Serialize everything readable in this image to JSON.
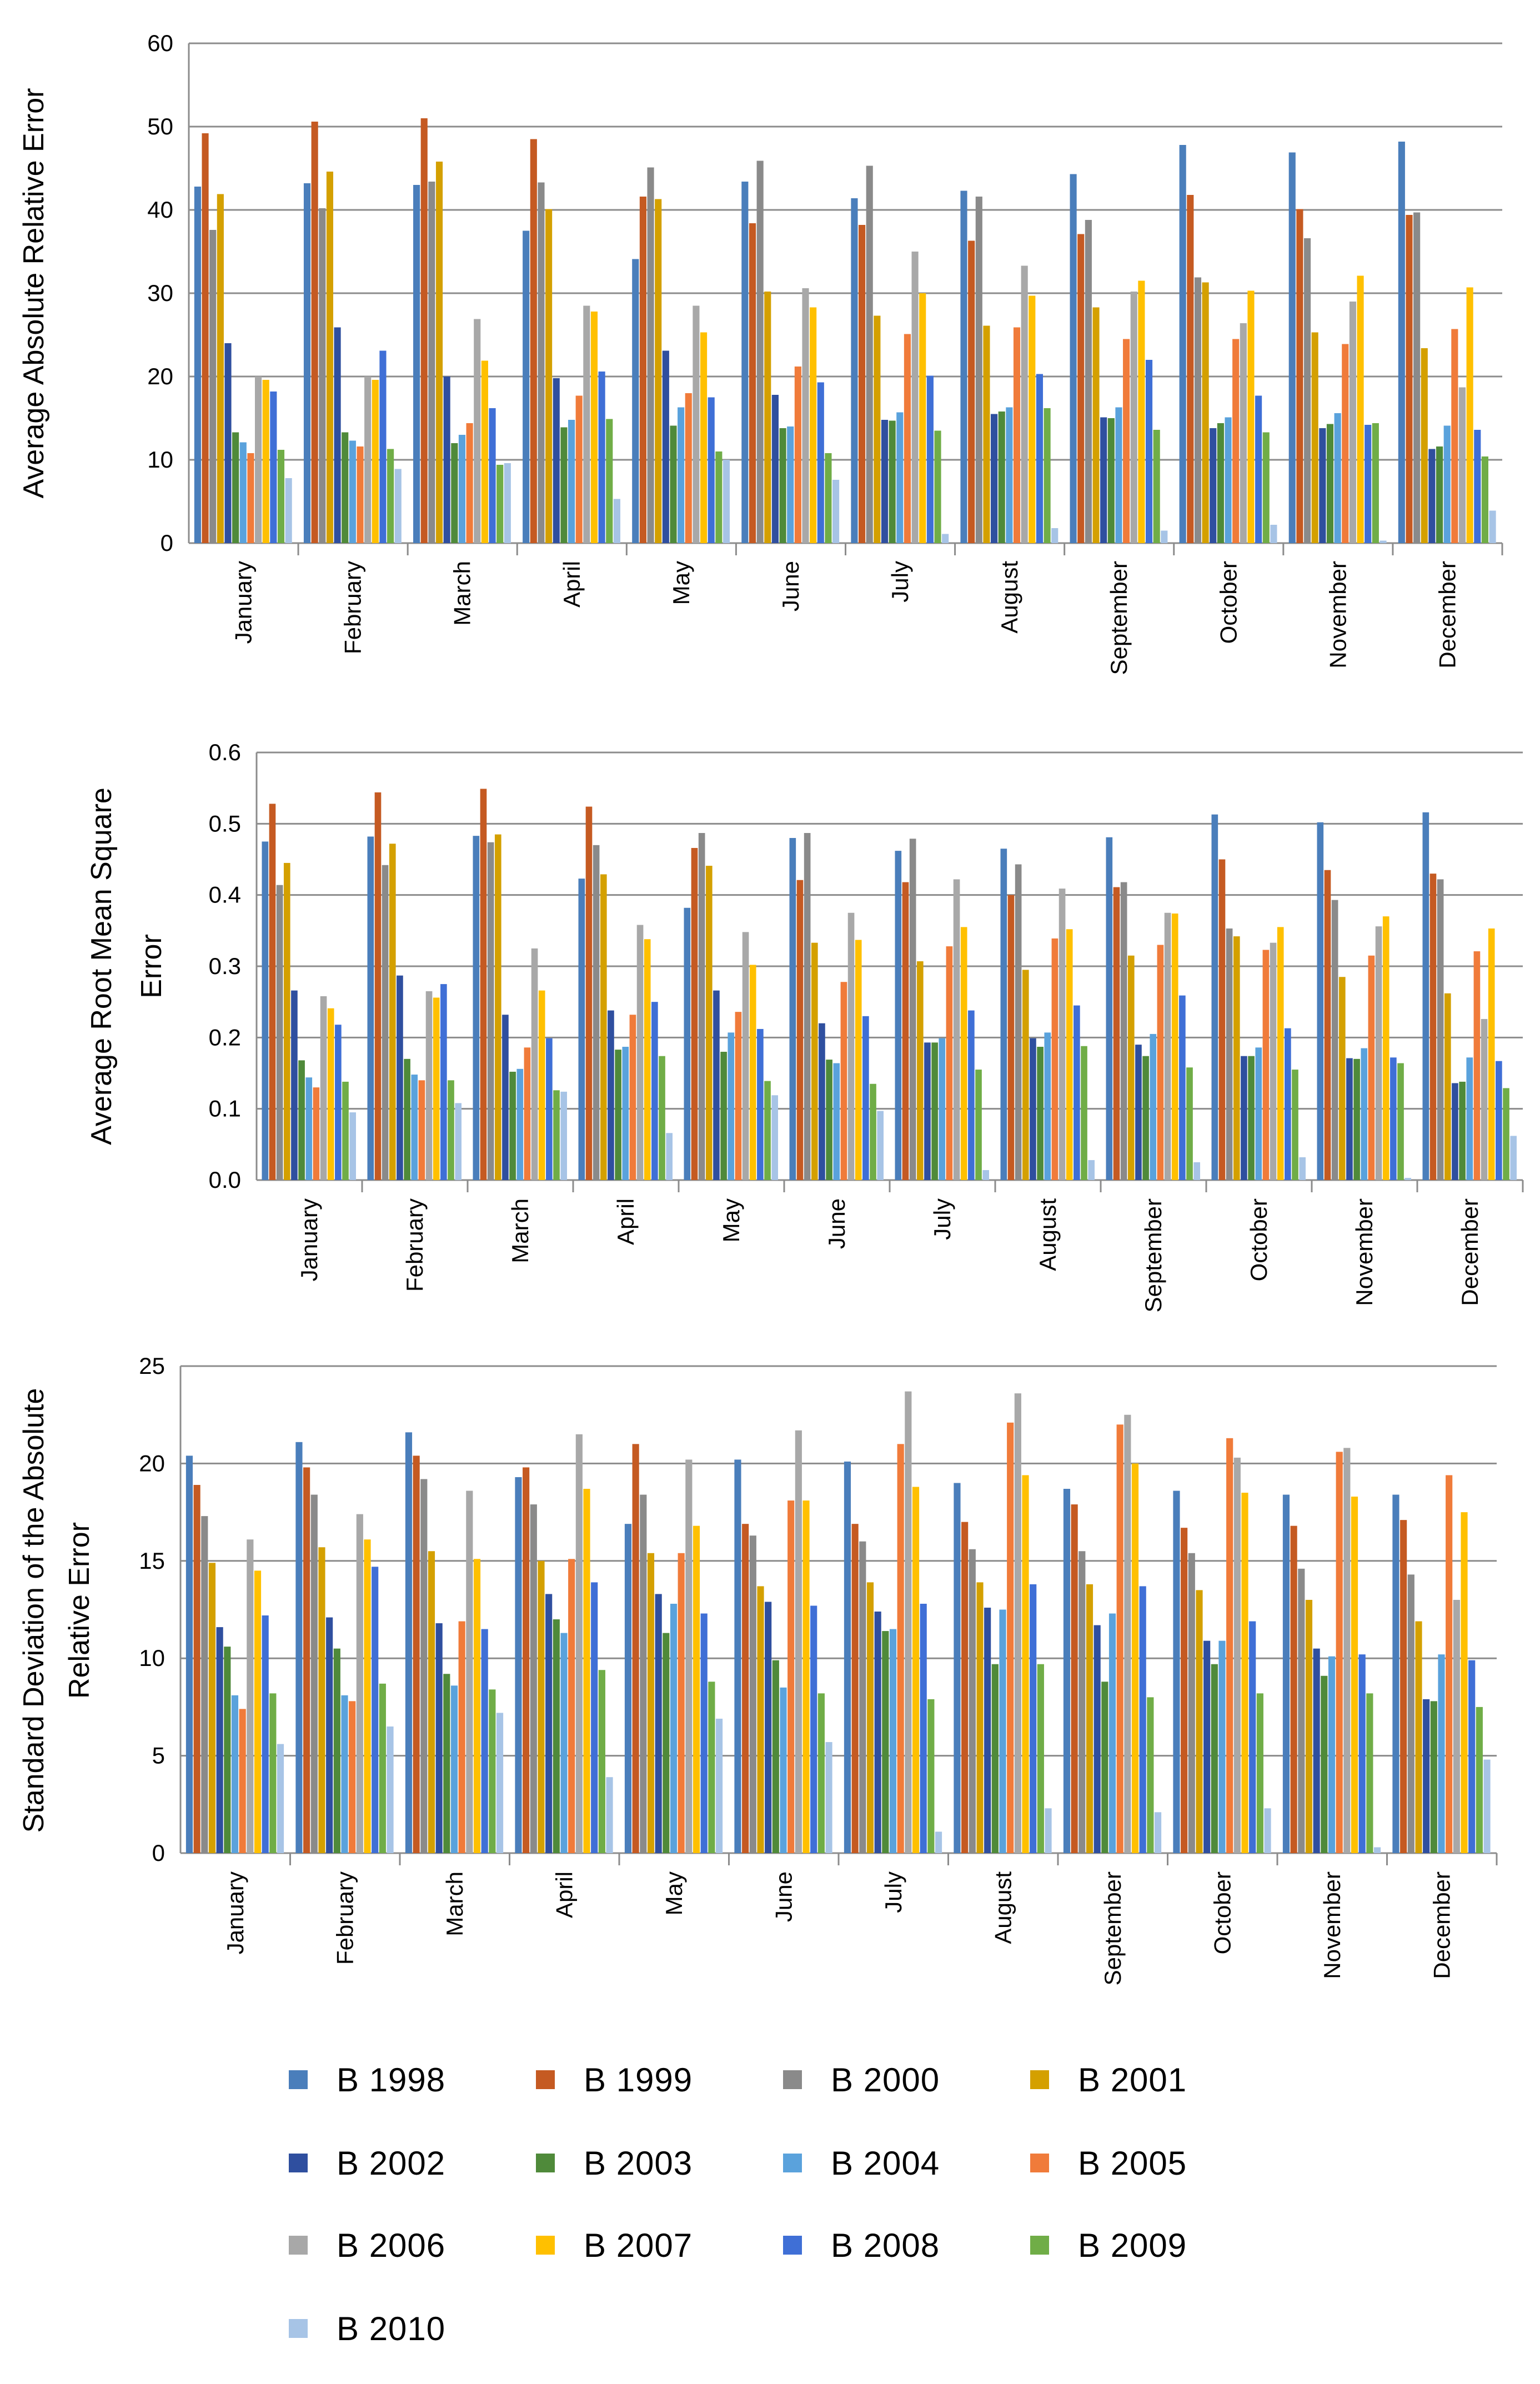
{
  "colors": {
    "B 1998": "#4a7ebb",
    "B 1999": "#c55a22",
    "B 2000": "#8a8a8a",
    "B 2001": "#d4a000",
    "B 2002": "#2f4f9f",
    "B 2003": "#4f8a3a",
    "B 2004": "#5aa2dc",
    "B 2005": "#f07b3a",
    "B 2006": "#a8a8a8",
    "B 2007": "#ffc000",
    "B 2008": "#3f6fd6",
    "B 2009": "#70ad47",
    "B 2010": "#a7c4e6"
  },
  "legend": [
    "B 1998",
    "B 1999",
    "B 2000",
    "B 2001",
    "B 2002",
    "B 2003",
    "B 2004",
    "B 2005",
    "B 2006",
    "B 2007",
    "B 2008",
    "B 2009",
    "B 2010"
  ],
  "chart_data": [
    {
      "type": "bar",
      "ylabel": "Average Absolute Relative Error",
      "ylim": [
        0,
        60
      ],
      "yticks": [
        "0",
        "10",
        "20",
        "30",
        "40",
        "50",
        "60"
      ],
      "categories": [
        "January",
        "February",
        "March",
        "April",
        "May",
        "June",
        "July",
        "August",
        "September",
        "October",
        "November",
        "December"
      ],
      "series": [
        {
          "name": "B 1998",
          "values": [
            42.8,
            43.2,
            43.0,
            37.5,
            34.1,
            43.4,
            41.4,
            42.3,
            44.3,
            47.8,
            46.9,
            48.2
          ]
        },
        {
          "name": "B 1999",
          "values": [
            49.2,
            50.6,
            51.0,
            48.5,
            41.6,
            38.4,
            38.2,
            36.3,
            37.1,
            41.8,
            40.1,
            39.4
          ]
        },
        {
          "name": "B 2000",
          "values": [
            37.6,
            40.2,
            43.4,
            43.3,
            45.1,
            45.9,
            45.3,
            41.6,
            38.8,
            31.9,
            36.6,
            39.7
          ]
        },
        {
          "name": "B 2001",
          "values": [
            41.9,
            44.6,
            45.8,
            40.1,
            41.3,
            30.2,
            27.3,
            26.1,
            28.3,
            31.3,
            25.3,
            23.4
          ]
        },
        {
          "name": "B 2002",
          "values": [
            24.0,
            25.9,
            20.0,
            19.8,
            23.1,
            17.8,
            14.8,
            15.5,
            15.1,
            13.8,
            13.8,
            11.3
          ]
        },
        {
          "name": "B 2003",
          "values": [
            13.3,
            13.3,
            12.0,
            13.9,
            14.1,
            13.8,
            14.7,
            15.8,
            15.0,
            14.4,
            14.3,
            11.6
          ]
        },
        {
          "name": "B 2004",
          "values": [
            12.1,
            12.3,
            13.0,
            14.8,
            16.3,
            14.0,
            15.7,
            16.3,
            16.3,
            15.1,
            15.6,
            14.1
          ]
        },
        {
          "name": "B 2005",
          "values": [
            10.8,
            11.6,
            14.4,
            17.7,
            18.0,
            21.2,
            25.1,
            25.9,
            24.5,
            24.5,
            23.9,
            25.7
          ]
        },
        {
          "name": "B 2006",
          "values": [
            20.0,
            20.0,
            26.9,
            28.5,
            28.5,
            30.6,
            35.0,
            33.3,
            30.2,
            26.4,
            29.0,
            18.7
          ]
        },
        {
          "name": "B 2007",
          "values": [
            19.6,
            19.6,
            21.9,
            27.8,
            25.3,
            28.3,
            30.0,
            29.7,
            31.5,
            30.3,
            32.1,
            30.7
          ]
        },
        {
          "name": "B 2008",
          "values": [
            18.2,
            23.1,
            16.2,
            20.6,
            17.5,
            19.3,
            20.1,
            20.3,
            22.0,
            17.7,
            14.2,
            13.6
          ]
        },
        {
          "name": "B 2009",
          "values": [
            11.2,
            11.3,
            9.4,
            14.9,
            11.0,
            10.8,
            13.5,
            16.2,
            13.6,
            13.3,
            14.4,
            10.4
          ]
        },
        {
          "name": "B 2010",
          "values": [
            7.8,
            8.9,
            9.6,
            5.3,
            10.0,
            7.6,
            1.1,
            1.8,
            1.5,
            2.2,
            0.3,
            3.9
          ]
        }
      ]
    },
    {
      "type": "bar",
      "ylabel": "Average Root Mean Square Error",
      "ylim": [
        0,
        0.6
      ],
      "yticks": [
        "0.0",
        "0.1",
        "0.2",
        "0.3",
        "0.4",
        "0.5",
        "0.6"
      ],
      "categories": [
        "January",
        "February",
        "March",
        "April",
        "May",
        "June",
        "July",
        "August",
        "September",
        "October",
        "November",
        "December"
      ],
      "series": [
        {
          "name": "B 1998",
          "values": [
            0.475,
            0.482,
            0.483,
            0.423,
            0.382,
            0.48,
            0.462,
            0.465,
            0.481,
            0.513,
            0.502,
            0.516
          ]
        },
        {
          "name": "B 1999",
          "values": [
            0.528,
            0.544,
            0.549,
            0.524,
            0.466,
            0.421,
            0.418,
            0.4,
            0.411,
            0.45,
            0.435,
            0.43
          ]
        },
        {
          "name": "B 2000",
          "values": [
            0.414,
            0.442,
            0.474,
            0.47,
            0.487,
            0.487,
            0.479,
            0.443,
            0.418,
            0.353,
            0.393,
            0.422
          ]
        },
        {
          "name": "B 2001",
          "values": [
            0.445,
            0.472,
            0.485,
            0.429,
            0.441,
            0.333,
            0.307,
            0.295,
            0.315,
            0.342,
            0.285,
            0.262
          ]
        },
        {
          "name": "B 2002",
          "values": [
            0.266,
            0.287,
            0.232,
            0.238,
            0.266,
            0.22,
            0.193,
            0.199,
            0.19,
            0.174,
            0.171,
            0.136
          ]
        },
        {
          "name": "B 2003",
          "values": [
            0.168,
            0.17,
            0.152,
            0.183,
            0.18,
            0.169,
            0.193,
            0.187,
            0.174,
            0.174,
            0.17,
            0.138
          ]
        },
        {
          "name": "B 2004",
          "values": [
            0.144,
            0.148,
            0.156,
            0.187,
            0.207,
            0.164,
            0.199,
            0.207,
            0.205,
            0.186,
            0.185,
            0.172
          ]
        },
        {
          "name": "B 2005",
          "values": [
            0.13,
            0.14,
            0.186,
            0.232,
            0.236,
            0.278,
            0.328,
            0.339,
            0.33,
            0.323,
            0.315,
            0.321
          ]
        },
        {
          "name": "B 2006",
          "values": [
            0.258,
            0.265,
            0.325,
            0.358,
            0.348,
            0.375,
            0.422,
            0.409,
            0.375,
            0.333,
            0.356,
            0.226
          ]
        },
        {
          "name": "B 2007",
          "values": [
            0.241,
            0.256,
            0.266,
            0.338,
            0.302,
            0.337,
            0.355,
            0.352,
            0.374,
            0.355,
            0.37,
            0.353
          ]
        },
        {
          "name": "B 2008",
          "values": [
            0.218,
            0.275,
            0.199,
            0.25,
            0.212,
            0.23,
            0.238,
            0.245,
            0.259,
            0.213,
            0.172,
            0.167
          ]
        },
        {
          "name": "B 2009",
          "values": [
            0.138,
            0.14,
            0.126,
            0.174,
            0.139,
            0.135,
            0.155,
            0.188,
            0.158,
            0.155,
            0.164,
            0.129
          ]
        },
        {
          "name": "B 2010",
          "values": [
            0.095,
            0.108,
            0.124,
            0.066,
            0.119,
            0.097,
            0.014,
            0.028,
            0.025,
            0.032,
            0.003,
            0.062
          ]
        }
      ]
    },
    {
      "type": "bar",
      "ylabel": "Standard Deviation of the Absolute Relative Error",
      "ylim": [
        0,
        25
      ],
      "yticks": [
        "0",
        "5",
        "10",
        "15",
        "20",
        "25"
      ],
      "categories": [
        "January",
        "February",
        "March",
        "April",
        "May",
        "June",
        "July",
        "August",
        "September",
        "October",
        "November",
        "December"
      ],
      "series": [
        {
          "name": "B 1998",
          "values": [
            20.4,
            21.1,
            21.6,
            19.3,
            16.9,
            20.2,
            20.1,
            19.0,
            18.7,
            18.6,
            18.4,
            18.4
          ]
        },
        {
          "name": "B 1999",
          "values": [
            18.9,
            19.8,
            20.4,
            19.8,
            21.0,
            16.9,
            16.9,
            17.0,
            17.9,
            16.7,
            16.8,
            17.1
          ]
        },
        {
          "name": "B 2000",
          "values": [
            17.3,
            18.4,
            19.2,
            17.9,
            18.4,
            16.3,
            16.0,
            15.6,
            15.5,
            15.4,
            14.6,
            14.3
          ]
        },
        {
          "name": "B 2001",
          "values": [
            14.9,
            15.7,
            15.5,
            15.0,
            15.4,
            13.7,
            13.9,
            13.9,
            13.8,
            13.5,
            13.0,
            11.9
          ]
        },
        {
          "name": "B 2002",
          "values": [
            11.6,
            12.1,
            11.8,
            13.3,
            13.3,
            12.9,
            12.4,
            12.6,
            11.7,
            10.9,
            10.5,
            7.9
          ]
        },
        {
          "name": "B 2003",
          "values": [
            10.6,
            10.5,
            9.2,
            12.0,
            11.3,
            9.9,
            11.4,
            9.7,
            8.8,
            9.7,
            9.1,
            7.8
          ]
        },
        {
          "name": "B 2004",
          "values": [
            8.1,
            8.1,
            8.6,
            11.3,
            12.8,
            8.5,
            11.5,
            12.5,
            12.3,
            10.9,
            10.1,
            10.2
          ]
        },
        {
          "name": "B 2005",
          "values": [
            7.4,
            7.8,
            11.9,
            15.1,
            15.4,
            18.1,
            21.0,
            22.1,
            22.0,
            21.3,
            20.6,
            19.4
          ]
        },
        {
          "name": "B 2006",
          "values": [
            16.1,
            17.4,
            18.6,
            21.5,
            20.2,
            21.7,
            23.7,
            23.6,
            22.5,
            20.3,
            20.8,
            13.0
          ]
        },
        {
          "name": "B 2007",
          "values": [
            14.5,
            16.1,
            15.1,
            18.7,
            16.8,
            18.1,
            18.8,
            19.4,
            20.0,
            18.5,
            18.3,
            17.5
          ]
        },
        {
          "name": "B 2008",
          "values": [
            12.2,
            14.7,
            11.5,
            13.9,
            12.3,
            12.7,
            12.8,
            13.8,
            13.7,
            11.9,
            10.2,
            9.9
          ]
        },
        {
          "name": "B 2009",
          "values": [
            8.2,
            8.7,
            8.4,
            9.4,
            8.8,
            8.2,
            7.9,
            9.7,
            8.0,
            8.2,
            8.2,
            7.5
          ]
        },
        {
          "name": "B 2010",
          "values": [
            5.6,
            6.5,
            7.2,
            3.9,
            6.9,
            5.7,
            1.1,
            2.3,
            2.1,
            2.3,
            0.3,
            4.8
          ]
        }
      ]
    }
  ]
}
